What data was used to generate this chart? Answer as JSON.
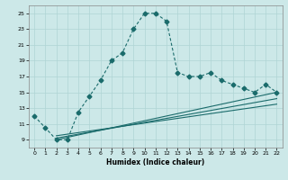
{
  "xlabel": "Humidex (Indice chaleur)",
  "bg_color": "#cce8e8",
  "line_color": "#1a6b6b",
  "grid_color": "#afd4d4",
  "xlim": [
    -0.5,
    22.5
  ],
  "ylim": [
    8.0,
    26.0
  ],
  "xticks": [
    0,
    1,
    2,
    3,
    4,
    5,
    6,
    7,
    8,
    9,
    10,
    11,
    12,
    13,
    14,
    15,
    16,
    17,
    18,
    19,
    20,
    21,
    22
  ],
  "yticks": [
    9,
    11,
    13,
    15,
    17,
    19,
    21,
    23,
    25
  ],
  "main_x": [
    0,
    1,
    2,
    3,
    4,
    5,
    6,
    7,
    8,
    9,
    10,
    11,
    12,
    13,
    14,
    15,
    16,
    17,
    18,
    19,
    20,
    21,
    22
  ],
  "main_y": [
    12.0,
    10.5,
    9.0,
    9.0,
    12.5,
    14.5,
    16.5,
    19.0,
    20.0,
    23.0,
    25.0,
    25.0,
    24.0,
    17.5,
    17.0,
    17.0,
    17.5,
    16.5,
    16.0,
    15.5,
    15.0,
    16.0,
    15.0
  ],
  "line2_x": [
    2,
    22
  ],
  "line2_y": [
    9.0,
    15.0
  ],
  "line3_x": [
    2,
    22
  ],
  "line3_y": [
    9.2,
    14.2
  ],
  "line4_x": [
    2,
    22
  ],
  "line4_y": [
    9.5,
    13.5
  ],
  "markersize": 2.5,
  "linewidth": 0.8
}
